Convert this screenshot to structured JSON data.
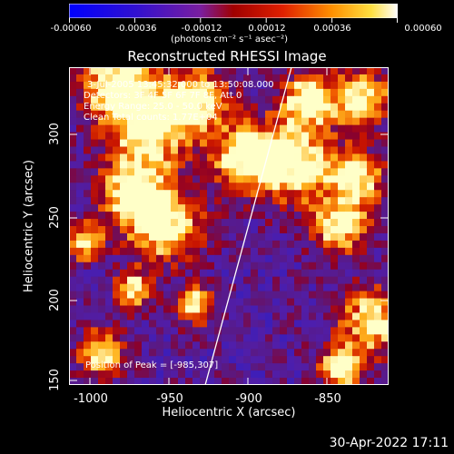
{
  "colorbar": {
    "ticks": [
      "-0.00060",
      "-0.00036",
      "-0.00012",
      "0.00012",
      "0.00036",
      "0.00060"
    ],
    "unit_label": "(photons cm⁻² s⁻¹ asec⁻²)"
  },
  "image": {
    "title": "Reconstructed RHESSI Image",
    "time_range": "3-Jul-2005 13:45:32.000 to 13:50:08.000",
    "detectors": "Detectors: 3F 4F 5F 6F 7F 8F, Att 0",
    "energy_range": "Energy Range: 25.0 - 50.0 keV",
    "clean_counts": "Clean     Total counts: 1.77E+04",
    "peak_position": "Position of Peak = [-985,307]"
  },
  "axes": {
    "xlabel": "Heliocentric X (arcsec)",
    "ylabel": "Heliocentric Y (arcsec)",
    "xticks": [
      "-1000",
      "-950",
      "-900",
      "-850"
    ],
    "yticks": [
      "300",
      "250",
      "200",
      "150"
    ]
  },
  "footer": {
    "timestamp": "30-Apr-2022 17:11"
  },
  "colors": {
    "background": "#000000",
    "limb_line": "#ffffff"
  }
}
